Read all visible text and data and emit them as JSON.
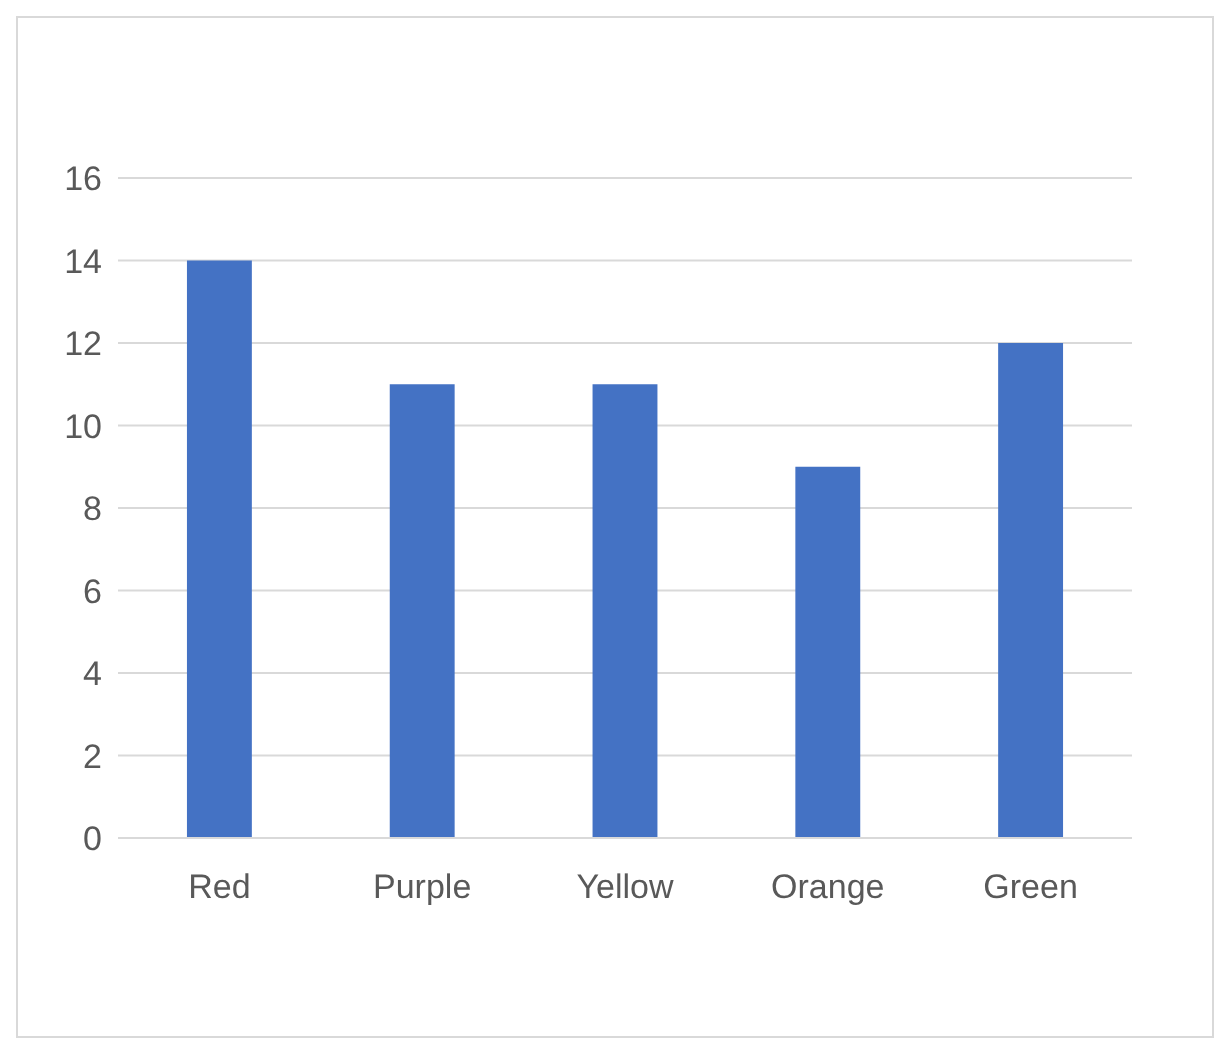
{
  "chart_data": {
    "type": "bar",
    "categories": [
      "Red",
      "Purple",
      "Yellow",
      "Orange",
      "Green"
    ],
    "series": [
      {
        "color": "#4472c4",
        "values": [
          14,
          11,
          11,
          9,
          12
        ]
      }
    ],
    "ylim": [
      0,
      16
    ],
    "yticks": [
      0,
      2,
      4,
      6,
      8,
      10,
      12,
      14,
      16
    ],
    "grid": "y"
  }
}
